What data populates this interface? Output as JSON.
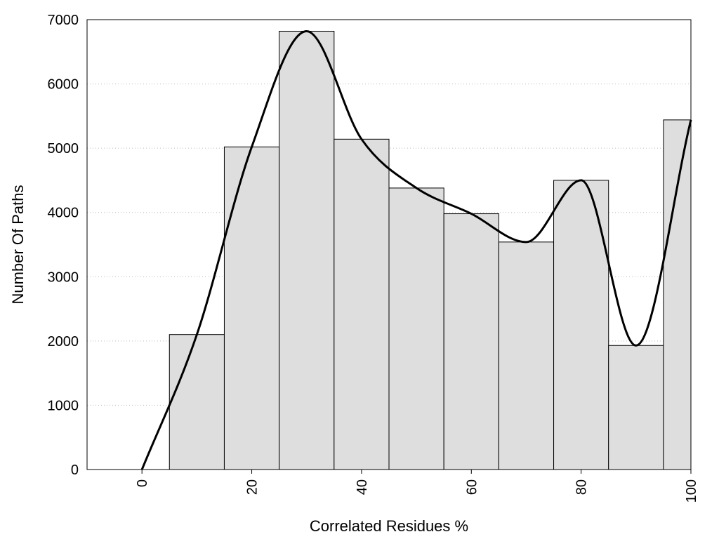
{
  "chart_data": {
    "type": "bar",
    "subtype": "histogram-with-smooth-curve",
    "xlabel": "Correlated Residues %",
    "ylabel": "Number Of Paths",
    "xlim": [
      -10,
      100
    ],
    "ylim": [
      0,
      7000
    ],
    "x_ticks": [
      0,
      20,
      40,
      60,
      80,
      100
    ],
    "y_ticks": [
      0,
      1000,
      2000,
      3000,
      4000,
      5000,
      6000,
      7000
    ],
    "grid": "horizontal dotted",
    "bin_width": 10,
    "bins": [
      {
        "center": 10,
        "value": 2100
      },
      {
        "center": 20,
        "value": 5020
      },
      {
        "center": 30,
        "value": 6820
      },
      {
        "center": 40,
        "value": 5140
      },
      {
        "center": 50,
        "value": 4380
      },
      {
        "center": 60,
        "value": 3980
      },
      {
        "center": 70,
        "value": 3540
      },
      {
        "center": 80,
        "value": 4500
      },
      {
        "center": 90,
        "value": 1930
      },
      {
        "center": 100,
        "value": 5440
      }
    ],
    "curve": {
      "x": [
        0,
        10,
        20,
        30,
        40,
        50,
        60,
        70,
        80,
        90,
        100
      ],
      "y": [
        0,
        2100,
        5020,
        6820,
        5140,
        4380,
        3980,
        3540,
        4500,
        1930,
        5440
      ]
    },
    "colors": {
      "bar_fill": "#dedede",
      "bar_stroke": "#000000",
      "curve": "#000000",
      "grid": "#bbbbbb"
    }
  }
}
